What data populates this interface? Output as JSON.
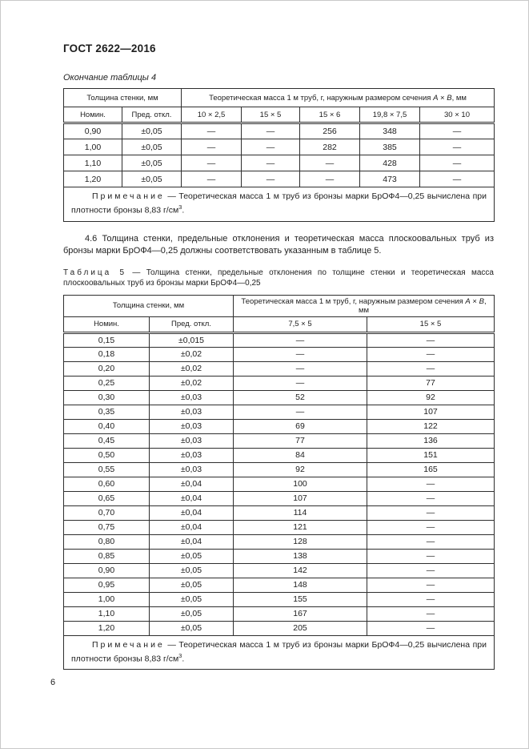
{
  "page": {
    "doc_number": "ГОСТ 2622—2016",
    "page_number": "6"
  },
  "table4": {
    "caption": "Окончание таблицы 4",
    "header": {
      "thickness_group": "Толщина стенки, мм",
      "mass_group_prefix": "Теоретическая масса 1 м труб, г, наружным размером сечения ",
      "dim_a": "A",
      "dim_sep": " × ",
      "dim_b": "B",
      "mass_group_suffix": ", мм"
    },
    "subheaders": [
      "Номин.",
      "Пред. откл.",
      "10 × 2,5",
      "15 × 5",
      "15 × 6",
      "19,8 × 7,5",
      "30 × 10"
    ],
    "rows": [
      [
        "0,90",
        "±0,05",
        "—",
        "—",
        "256",
        "348",
        "—"
      ],
      [
        "1,00",
        "±0,05",
        "—",
        "—",
        "282",
        "385",
        "—"
      ],
      [
        "1,10",
        "±0,05",
        "—",
        "—",
        "—",
        "428",
        "—"
      ],
      [
        "1,20",
        "±0,05",
        "—",
        "—",
        "—",
        "473",
        "—"
      ]
    ],
    "note": {
      "label": "Примечание",
      "text": " — Теоретическая масса 1 м труб из бронзы марки БрОФ4—0,25 вычислена при плотности бронзы 8,83 г/см",
      "sup": "3",
      "tail": "."
    }
  },
  "section46": {
    "text": "4.6 Толщина стенки, предельные отклонения и теоретическая масса плоскоовальных труб из бронзы марки БрОФ4—0,25 должны соответствовать указанным в таблице 5."
  },
  "table5": {
    "caption_label": "Таблица 5",
    "caption_text": " — Толщина стенки, предельные отклонения по толщине стенки и теоретическая масса плоскоовальных труб из бронзы марки БрОФ4—0,25",
    "header": {
      "thickness_group": "Толщина стенки, мм",
      "mass_group_prefix": "Теоретическая масса 1 м труб, г, наружным размером сечения ",
      "dim_a": "A",
      "dim_sep": " × ",
      "dim_b": "B",
      "mass_group_suffix": ", мм"
    },
    "subheaders": [
      "Номин.",
      "Пред. откл.",
      "7,5 × 5",
      "15 × 5"
    ],
    "rows": [
      [
        "0,15",
        "±0,015",
        "—",
        "—"
      ],
      [
        "0,18",
        "±0,02",
        "—",
        "—"
      ],
      [
        "0,20",
        "±0,02",
        "—",
        "—"
      ],
      [
        "0,25",
        "±0,02",
        "—",
        "77"
      ],
      [
        "0,30",
        "±0,03",
        "52",
        "92"
      ],
      [
        "0,35",
        "±0,03",
        "—",
        "107"
      ],
      [
        "0,40",
        "±0,03",
        "69",
        "122"
      ],
      [
        "0,45",
        "±0,03",
        "77",
        "136"
      ],
      [
        "0,50",
        "±0,03",
        "84",
        "151"
      ],
      [
        "0,55",
        "±0,03",
        "92",
        "165"
      ],
      [
        "0,60",
        "±0,04",
        "100",
        "—"
      ],
      [
        "0,65",
        "±0,04",
        "107",
        "—"
      ],
      [
        "0,70",
        "±0,04",
        "114",
        "—"
      ],
      [
        "0,75",
        "±0,04",
        "121",
        "—"
      ],
      [
        "0,80",
        "±0,04",
        "128",
        "—"
      ],
      [
        "0,85",
        "±0,05",
        "138",
        "—"
      ],
      [
        "0,90",
        "±0,05",
        "142",
        "—"
      ],
      [
        "0,95",
        "±0,05",
        "148",
        "—"
      ],
      [
        "1,00",
        "±0,05",
        "155",
        "—"
      ],
      [
        "1,10",
        "±0,05",
        "167",
        "—"
      ],
      [
        "1,20",
        "±0,05",
        "205",
        "—"
      ]
    ],
    "note": {
      "label": "Примечание",
      "text": " — Теоретическая масса 1 м труб из бронзы марки БрОФ4—0,25 вычислена при плотности бронзы 8,83 г/см",
      "sup": "3",
      "tail": "."
    }
  }
}
